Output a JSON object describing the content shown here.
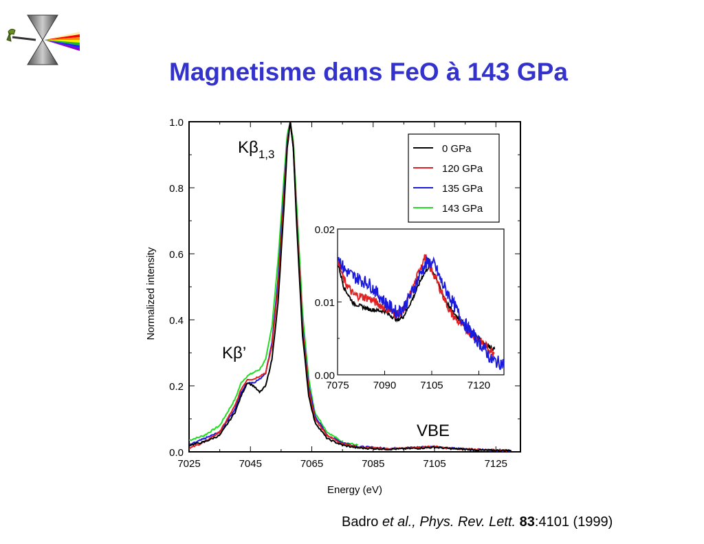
{
  "slide": {
    "title": "Magnetisme dans FeO à 143 GPa",
    "citation": {
      "author": "Badro",
      "etal": "et al., Phys. Rev. Lett.",
      "volume": "83",
      "pages": ":4101 (1999)"
    },
    "logo_icon": "diamond-anvil-cell-icon"
  },
  "chart_data": [
    {
      "type": "line",
      "xlabel": "Energy (eV)",
      "ylabel": "Normalized intensity",
      "xlim": [
        7025,
        7133
      ],
      "ylim": [
        0.0,
        1.0
      ],
      "xticks": [
        "7025",
        "7045",
        "7065",
        "7085",
        "7105",
        "7125"
      ],
      "yticks": [
        "0.0",
        "0.2",
        "0.4",
        "0.6",
        "0.8",
        "1.0"
      ],
      "legend_position": "top-right",
      "annotations": {
        "kbeta13": "Kβ",
        "kbeta13_sub": "1,3",
        "kbeta_prime": "Kβ’",
        "vbe": "VBE"
      },
      "series": [
        {
          "name": "0 GPa",
          "color": "#000000",
          "x": [
            7025,
            7030,
            7035,
            7040,
            7042,
            7044,
            7046,
            7048,
            7050,
            7052,
            7054,
            7056,
            7057,
            7058,
            7059,
            7060,
            7062,
            7064,
            7066,
            7070,
            7075,
            7080,
            7090,
            7100,
            7105,
            7110,
            7120,
            7130
          ],
          "y": [
            0.02,
            0.03,
            0.05,
            0.12,
            0.17,
            0.21,
            0.2,
            0.18,
            0.2,
            0.28,
            0.45,
            0.75,
            0.92,
            1.0,
            0.92,
            0.7,
            0.35,
            0.17,
            0.09,
            0.04,
            0.02,
            0.012,
            0.008,
            0.011,
            0.014,
            0.01,
            0.005,
            0.004
          ]
        },
        {
          "name": "120 GPa",
          "color": "#e02020",
          "x": [
            7025,
            7030,
            7035,
            7040,
            7042,
            7044,
            7046,
            7048,
            7050,
            7052,
            7054,
            7056,
            7057,
            7058,
            7059,
            7060,
            7062,
            7064,
            7066,
            7070,
            7075,
            7080,
            7090,
            7100,
            7105,
            7110,
            7120,
            7130
          ],
          "y": [
            0.01,
            0.03,
            0.06,
            0.14,
            0.19,
            0.22,
            0.22,
            0.23,
            0.24,
            0.32,
            0.5,
            0.78,
            0.93,
            1.0,
            0.92,
            0.72,
            0.37,
            0.19,
            0.1,
            0.05,
            0.025,
            0.014,
            0.009,
            0.013,
            0.016,
            0.011,
            0.006,
            0.004
          ]
        },
        {
          "name": "135 GPa",
          "color": "#1a1adc",
          "x": [
            7025,
            7030,
            7035,
            7040,
            7042,
            7044,
            7046,
            7048,
            7050,
            7052,
            7054,
            7056,
            7057,
            7058,
            7059,
            7060,
            7062,
            7064,
            7066,
            7070,
            7075,
            7080,
            7090,
            7100,
            7105,
            7110,
            7120,
            7130
          ],
          "y": [
            0.02,
            0.04,
            0.06,
            0.13,
            0.18,
            0.21,
            0.21,
            0.22,
            0.24,
            0.33,
            0.52,
            0.8,
            0.94,
            1.0,
            0.92,
            0.72,
            0.38,
            0.2,
            0.11,
            0.05,
            0.028,
            0.016,
            0.01,
            0.014,
            0.016,
            0.011,
            0.006,
            0.004
          ]
        },
        {
          "name": "143 GPa",
          "color": "#22dd22",
          "x": [
            7025,
            7030,
            7035,
            7040,
            7042,
            7044,
            7046,
            7048,
            7050,
            7052,
            7054,
            7056,
            7057,
            7058,
            7059,
            7060,
            7062,
            7064,
            7066,
            7070,
            7075,
            7080
          ],
          "y": [
            0.035,
            0.05,
            0.08,
            0.16,
            0.21,
            0.23,
            0.24,
            0.25,
            0.28,
            0.38,
            0.58,
            0.84,
            0.96,
            1.0,
            0.94,
            0.76,
            0.42,
            0.22,
            0.12,
            0.06,
            0.03,
            0.02
          ]
        }
      ]
    },
    {
      "type": "line",
      "xlim": [
        7075,
        7128
      ],
      "ylim": [
        0.0,
        0.02
      ],
      "xticks": [
        "7075",
        "7090",
        "7105",
        "7120"
      ],
      "yticks": [
        "0.00",
        "0.01",
        "0.02"
      ],
      "series": [
        {
          "name": "0 GPa",
          "color": "#000000",
          "x": [
            7075,
            7077,
            7080,
            7085,
            7090,
            7094,
            7096,
            7099,
            7102,
            7104,
            7106,
            7108,
            7111,
            7114,
            7118,
            7122,
            7125
          ],
          "y": [
            0.0155,
            0.012,
            0.0098,
            0.009,
            0.0087,
            0.0075,
            0.008,
            0.0105,
            0.0135,
            0.0148,
            0.0138,
            0.0115,
            0.009,
            0.0075,
            0.0058,
            0.0042,
            0.0035
          ]
        },
        {
          "name": "120 GPa",
          "color": "#e02020",
          "x": [
            7075,
            7077,
            7080,
            7085,
            7090,
            7094,
            7096,
            7099,
            7102,
            7103,
            7104,
            7106,
            7108,
            7111,
            7114,
            7118,
            7122,
            7125
          ],
          "y": [
            0.016,
            0.013,
            0.011,
            0.0105,
            0.0092,
            0.0082,
            0.009,
            0.0118,
            0.0155,
            0.0162,
            0.015,
            0.0135,
            0.0115,
            0.0085,
            0.007,
            0.0055,
            0.004,
            0.003
          ]
        },
        {
          "name": "135 GPa",
          "color": "#1a1adc",
          "x": [
            7075,
            7077,
            7080,
            7085,
            7090,
            7094,
            7096,
            7099,
            7102,
            7104,
            7106,
            7108,
            7111,
            7114,
            7118,
            7122,
            7124,
            7128
          ],
          "y": [
            0.0165,
            0.0145,
            0.0135,
            0.0125,
            0.01,
            0.0085,
            0.0092,
            0.0115,
            0.0145,
            0.0155,
            0.015,
            0.0128,
            0.0105,
            0.008,
            0.0055,
            0.0035,
            0.002,
            0.0015
          ]
        }
      ]
    }
  ]
}
